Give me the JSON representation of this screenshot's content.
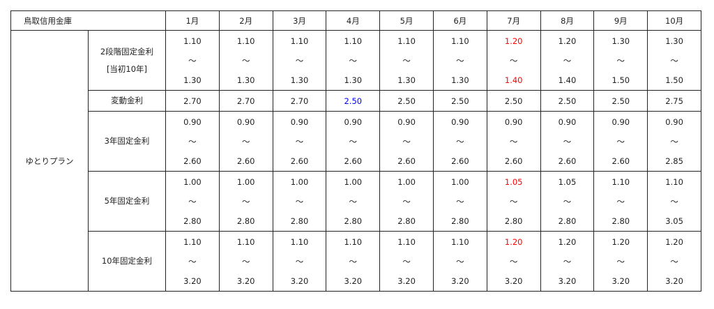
{
  "header": {
    "bank": "鳥取信用金庫",
    "months": [
      "1月",
      "2月",
      "3月",
      "4月",
      "5月",
      "6月",
      "7月",
      "8月",
      "9月",
      "10月"
    ]
  },
  "plan": "ゆとりプラン",
  "colors": {
    "default": "#222222",
    "increase": "#ff0000",
    "decrease": "#0000ff"
  },
  "rows": [
    {
      "label": [
        "2段階固定金利",
        "[当初10年]"
      ],
      "type": "range",
      "cells": [
        {
          "low": "1.10",
          "high": "1.30"
        },
        {
          "low": "1.10",
          "high": "1.30"
        },
        {
          "low": "1.10",
          "high": "1.30"
        },
        {
          "low": "1.10",
          "high": "1.30"
        },
        {
          "low": "1.10",
          "high": "1.30"
        },
        {
          "low": "1.10",
          "high": "1.30"
        },
        {
          "low": "1.20",
          "high": "1.40",
          "low_color": "increase",
          "high_color": "increase"
        },
        {
          "low": "1.20",
          "high": "1.40"
        },
        {
          "low": "1.30",
          "high": "1.50"
        },
        {
          "low": "1.30",
          "high": "1.50"
        }
      ]
    },
    {
      "label": [
        "変動金利"
      ],
      "type": "single",
      "cells": [
        {
          "value": "2.70"
        },
        {
          "value": "2.70"
        },
        {
          "value": "2.70"
        },
        {
          "value": "2.50",
          "color": "decrease"
        },
        {
          "value": "2.50"
        },
        {
          "value": "2.50"
        },
        {
          "value": "2.50"
        },
        {
          "value": "2.50"
        },
        {
          "value": "2.50"
        },
        {
          "value": "2.75"
        }
      ]
    },
    {
      "label": [
        "3年固定金利"
      ],
      "type": "range",
      "cells": [
        {
          "low": "0.90",
          "high": "2.60"
        },
        {
          "low": "0.90",
          "high": "2.60"
        },
        {
          "low": "0.90",
          "high": "2.60"
        },
        {
          "low": "0.90",
          "high": "2.60"
        },
        {
          "low": "0.90",
          "high": "2.60"
        },
        {
          "low": "0.90",
          "high": "2.60"
        },
        {
          "low": "0.90",
          "high": "2.60"
        },
        {
          "low": "0.90",
          "high": "2.60"
        },
        {
          "low": "0.90",
          "high": "2.60"
        },
        {
          "low": "0.90",
          "high": "2.85"
        }
      ]
    },
    {
      "label": [
        "5年固定金利"
      ],
      "type": "range",
      "cells": [
        {
          "low": "1.00",
          "high": "2.80"
        },
        {
          "low": "1.00",
          "high": "2.80"
        },
        {
          "low": "1.00",
          "high": "2.80"
        },
        {
          "low": "1.00",
          "high": "2.80"
        },
        {
          "low": "1.00",
          "high": "2.80"
        },
        {
          "low": "1.00",
          "high": "2.80"
        },
        {
          "low": "1.05",
          "high": "2.80",
          "low_color": "increase"
        },
        {
          "low": "1.05",
          "high": "2.80"
        },
        {
          "low": "1.10",
          "high": "2.80"
        },
        {
          "low": "1.10",
          "high": "3.05"
        }
      ]
    },
    {
      "label": [
        "10年固定金利"
      ],
      "type": "range",
      "cells": [
        {
          "low": "1.10",
          "high": "3.20"
        },
        {
          "low": "1.10",
          "high": "3.20"
        },
        {
          "low": "1.10",
          "high": "3.20"
        },
        {
          "low": "1.10",
          "high": "3.20"
        },
        {
          "low": "1.10",
          "high": "3.20"
        },
        {
          "low": "1.10",
          "high": "3.20"
        },
        {
          "low": "1.20",
          "high": "3.20",
          "low_color": "increase"
        },
        {
          "low": "1.20",
          "high": "3.20"
        },
        {
          "low": "1.20",
          "high": "3.20"
        },
        {
          "low": "1.20",
          "high": "3.20"
        }
      ]
    }
  ],
  "range_separator": "～"
}
